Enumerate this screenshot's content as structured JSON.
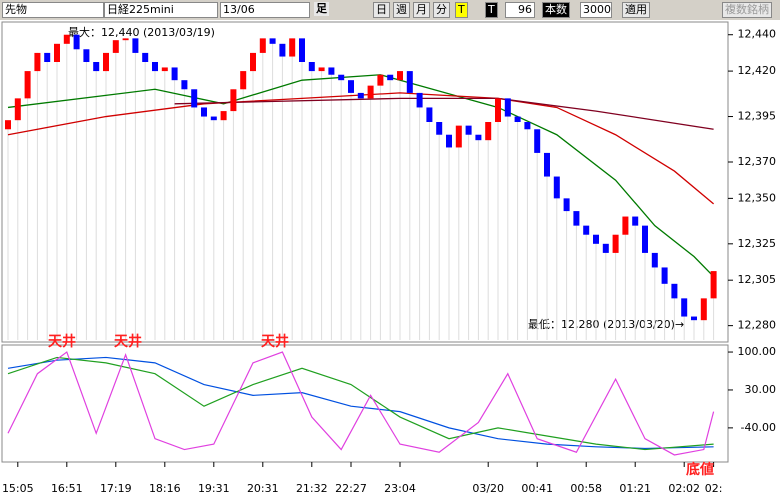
{
  "toolbar": {
    "market": "先物",
    "product": "日経225mini",
    "month": "13/06",
    "bar_label": "足",
    "day": "日",
    "week": "週",
    "month_btn": "月",
    "minute": "分",
    "tick": "T",
    "tick2": "T",
    "period": "96",
    "count_label": "本数",
    "count": "3000",
    "apply": "適用",
    "multi": "複数銘柄"
  },
  "chart_data": [
    {
      "type": "candlestick",
      "categories": [
        null,
        "15:05",
        null,
        null,
        null,
        null,
        "16:51",
        null,
        null,
        null,
        null,
        "17:19",
        null,
        null,
        null,
        null,
        "18:16",
        null,
        null,
        null,
        null,
        "19:31",
        null,
        null,
        null,
        null,
        "20:31",
        null,
        null,
        null,
        null,
        "21:32",
        null,
        null,
        null,
        "22:27",
        null,
        null,
        null,
        null,
        "23:04",
        null,
        null,
        null,
        null,
        null,
        null,
        null,
        null,
        "03/20",
        null,
        null,
        null,
        null,
        "00:41",
        null,
        null,
        null,
        null,
        "00:58",
        null,
        null,
        null,
        null,
        "01:21",
        null,
        null,
        null,
        null,
        "02:02",
        null,
        null,
        "02:"
      ],
      "open": [
        12388,
        12393,
        12405,
        12420,
        12430,
        12425,
        12435,
        12440,
        12432,
        12425,
        12420,
        12430,
        12437,
        12438,
        12430,
        12425,
        12420,
        12422,
        12415,
        12410,
        12400,
        12395,
        12393,
        12398,
        12410,
        12420,
        12430,
        12438,
        12435,
        12428,
        12438,
        12425,
        12420,
        12422,
        12418,
        12415,
        12408,
        12405,
        12412,
        12418,
        12415,
        12420,
        12408,
        12400,
        12392,
        12385,
        12378,
        12390,
        12385,
        12382,
        12392,
        12405,
        12395,
        12392,
        12388,
        12375,
        12362,
        12350,
        12343,
        12335,
        12330,
        12325,
        12320,
        12330,
        12340,
        12335,
        12320,
        12312,
        12303,
        12295,
        12285,
        12283,
        12295
      ],
      "close": [
        12393,
        12405,
        12420,
        12430,
        12425,
        12435,
        12440,
        12432,
        12425,
        12420,
        12430,
        12437,
        12438,
        12430,
        12425,
        12420,
        12422,
        12415,
        12410,
        12400,
        12395,
        12393,
        12398,
        12410,
        12420,
        12430,
        12438,
        12435,
        12428,
        12438,
        12425,
        12420,
        12422,
        12418,
        12415,
        12408,
        12405,
        12412,
        12418,
        12415,
        12420,
        12408,
        12400,
        12392,
        12385,
        12378,
        12390,
        12385,
        12382,
        12392,
        12405,
        12395,
        12392,
        12388,
        12375,
        12362,
        12350,
        12343,
        12335,
        12330,
        12325,
        12320,
        12330,
        12340,
        12335,
        12320,
        12312,
        12303,
        12295,
        12285,
        12283,
        12295,
        12310
      ],
      "up_color": "#ff0000",
      "down_color": "#0000ff",
      "lines": [
        {
          "color": "#007a00",
          "x": [
            0,
            15,
            22,
            30,
            38,
            42,
            50,
            56,
            62,
            66,
            70,
            72
          ],
          "values": [
            12400,
            12410,
            12402,
            12415,
            12418,
            12412,
            12400,
            12385,
            12360,
            12335,
            12318,
            12307
          ]
        },
        {
          "color": "#d00000",
          "x": [
            0,
            10,
            20,
            30,
            40,
            50,
            56,
            62,
            68,
            72
          ],
          "values": [
            12385,
            12395,
            12402,
            12405,
            12408,
            12405,
            12400,
            12385,
            12365,
            12347
          ]
        },
        {
          "color": "#800020",
          "x": [
            17,
            40,
            50,
            60,
            72
          ],
          "values": [
            12402,
            12405,
            12405,
            12398,
            12388
          ]
        }
      ],
      "ylim": [
        12271,
        12447
      ],
      "yticks": [
        {
          "value": 12440,
          "label": "12,440"
        },
        {
          "value": 12420,
          "label": "12,420"
        },
        {
          "value": 12395,
          "label": "12,395"
        },
        {
          "value": 12370,
          "label": "12,370"
        },
        {
          "value": 12350,
          "label": "12,350"
        },
        {
          "value": 12325,
          "label": "12,325"
        },
        {
          "value": 12305,
          "label": "12,305"
        },
        {
          "value": 12280,
          "label": "12,280"
        }
      ],
      "max_label": "最大：12,440 (2013/03/19)",
      "min_label": "最低：12,280 (2013/03/20)→"
    },
    {
      "type": "line",
      "series": [
        {
          "color": "#0050e0",
          "x": [
            0,
            5,
            10,
            15,
            20,
            25,
            30,
            35,
            40,
            45,
            50,
            55,
            60,
            65,
            72
          ],
          "values": [
            70,
            85,
            90,
            80,
            40,
            20,
            25,
            0,
            -10,
            -40,
            -60,
            -70,
            -75,
            -78,
            -75
          ]
        },
        {
          "color": "#20a020",
          "x": [
            0,
            5,
            10,
            15,
            20,
            25,
            30,
            35,
            40,
            45,
            50,
            55,
            60,
            65,
            72
          ],
          "values": [
            60,
            90,
            80,
            60,
            0,
            40,
            70,
            40,
            -20,
            -60,
            -40,
            -55,
            -70,
            -80,
            -70
          ]
        },
        {
          "color": "#e040e0",
          "x": [
            0,
            3,
            6,
            9,
            12,
            15,
            18,
            21,
            25,
            28,
            31,
            34,
            37,
            40,
            44,
            48,
            51,
            54,
            58,
            62,
            65,
            68,
            71,
            72
          ],
          "values": [
            -50,
            60,
            100,
            -50,
            95,
            -60,
            -80,
            -70,
            80,
            100,
            -20,
            -80,
            20,
            -70,
            -85,
            -30,
            60,
            -60,
            -85,
            50,
            -60,
            -90,
            -80,
            -10
          ]
        }
      ],
      "ylim": [
        -103,
        113
      ],
      "yticks": [
        {
          "value": 100,
          "label": "100.00"
        },
        {
          "value": 30,
          "label": "30.00"
        },
        {
          "value": -40,
          "label": "-40.00"
        }
      ],
      "annotations": [
        "天井",
        "天井",
        "天井",
        "底値"
      ]
    }
  ]
}
